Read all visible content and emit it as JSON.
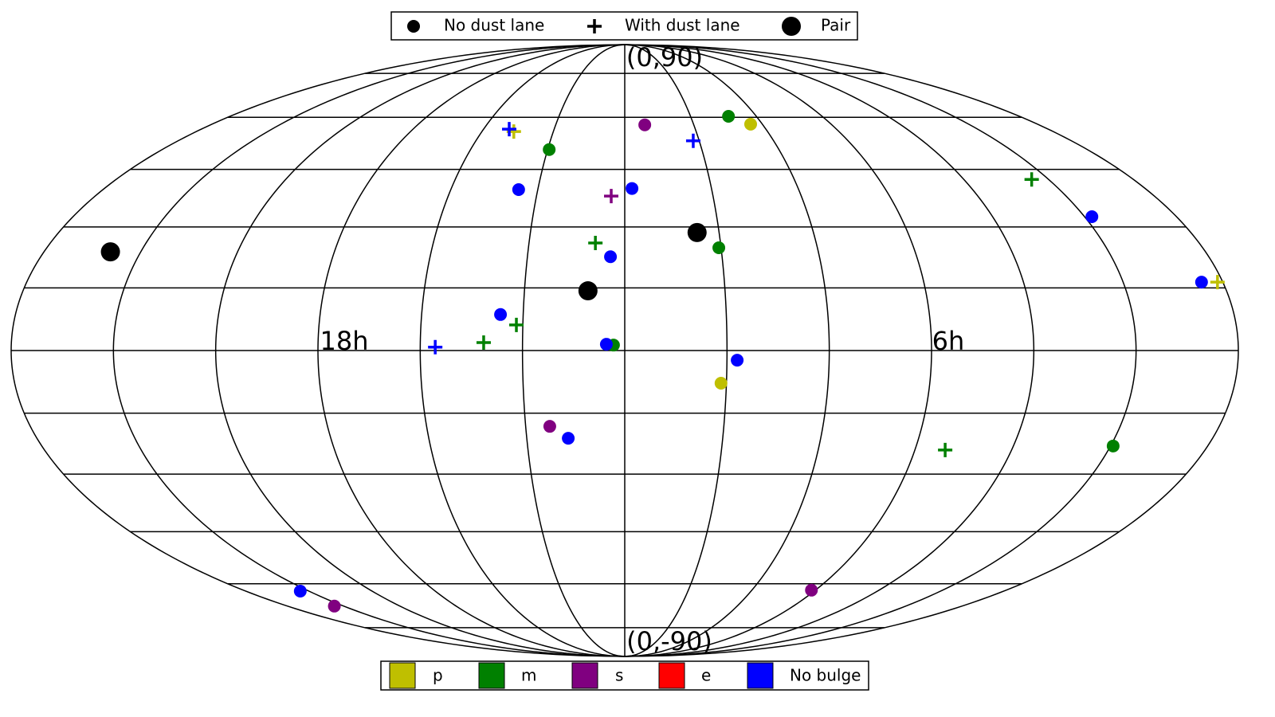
{
  "chart_data": {
    "type": "scatter",
    "projection": "mollweide",
    "xlim": [
      -180,
      180
    ],
    "ylim": [
      -90,
      90
    ],
    "xticks": [
      -180,
      -150,
      -120,
      -90,
      -60,
      -30,
      0,
      30,
      60,
      90,
      120,
      150,
      180
    ],
    "yticks": [
      -75,
      -60,
      -45,
      -30,
      -15,
      0,
      15,
      30,
      45,
      60,
      75
    ],
    "grid": true,
    "annotations": [
      "(0,90)",
      "(0,-90)",
      "18h",
      "6h"
    ],
    "marker_legend": [
      {
        "label": "No dust lane",
        "shape": "dot"
      },
      {
        "label": "With dust lane",
        "shape": "plus"
      },
      {
        "label": "Pair",
        "shape": "bigdot"
      }
    ],
    "color_legend": [
      {
        "label": "p",
        "color": "#bfbf00"
      },
      {
        "label": "m",
        "color": "#008000"
      },
      {
        "label": "s",
        "color": "#800080"
      },
      {
        "label": "e",
        "color": "#ff0000"
      },
      {
        "label": "No bulge",
        "color": "#0000ff"
      }
    ],
    "series": [
      {
        "marker": 0,
        "color_index": 0,
        "x": [
          54.9,
          28.4
        ],
        "y": [
          57.9,
          -7.8
        ]
      },
      {
        "marker": 1,
        "color_index": 0,
        "x": [
          -46.6,
          178.4
        ],
        "y": [
          55.7,
          16.4
        ]
      },
      {
        "marker": 0,
        "color_index": 1,
        "x": [
          -29.4,
          47.3,
          29.3,
          -3.3,
          150.8
        ],
        "y": [
          50.5,
          60.3,
          24.8,
          1.3,
          -23.0
        ]
      },
      {
        "marker": 1,
        "color_index": 1,
        "x": [
          144.0,
          -9.2,
          -31.9,
          -41.4,
          99.4
        ],
        "y": [
          42.3,
          26.0,
          6.1,
          1.9,
          -24.0
        ]
      },
      {
        "marker": 0,
        "color_index": 2,
        "x": [
          8.7,
          -22.7,
          -155.0,
          88.1
        ],
        "y": [
          57.7,
          -18.2,
          -67.2,
          -62.0
        ]
      },
      {
        "marker": 1,
        "color_index": 2,
        "x": [
          -4.6
        ],
        "y": [
          37.9
        ]
      },
      {
        "marker": 0,
        "color_index": 4,
        "x": [
          152.4,
          -36.6,
          2.5,
          -4.4,
          173.6,
          -36.7,
          -5.4,
          33.0,
          -17.3,
          -154.1
        ],
        "y": [
          32.6,
          39.6,
          39.9,
          22.6,
          16.4,
          8.6,
          1.5,
          -2.3,
          -21.1,
          -62.3
        ]
      },
      {
        "marker": 1,
        "color_index": 4,
        "x": [
          -49.1,
          27.6,
          -55.6
        ],
        "y": [
          56.4,
          53.0,
          0.8
        ]
      },
      {
        "marker": 2,
        "color": "#000000",
        "x": [
          23.0,
          -159.4,
          -11.0
        ],
        "y": [
          28.6,
          23.8,
          14.3
        ]
      }
    ]
  }
}
